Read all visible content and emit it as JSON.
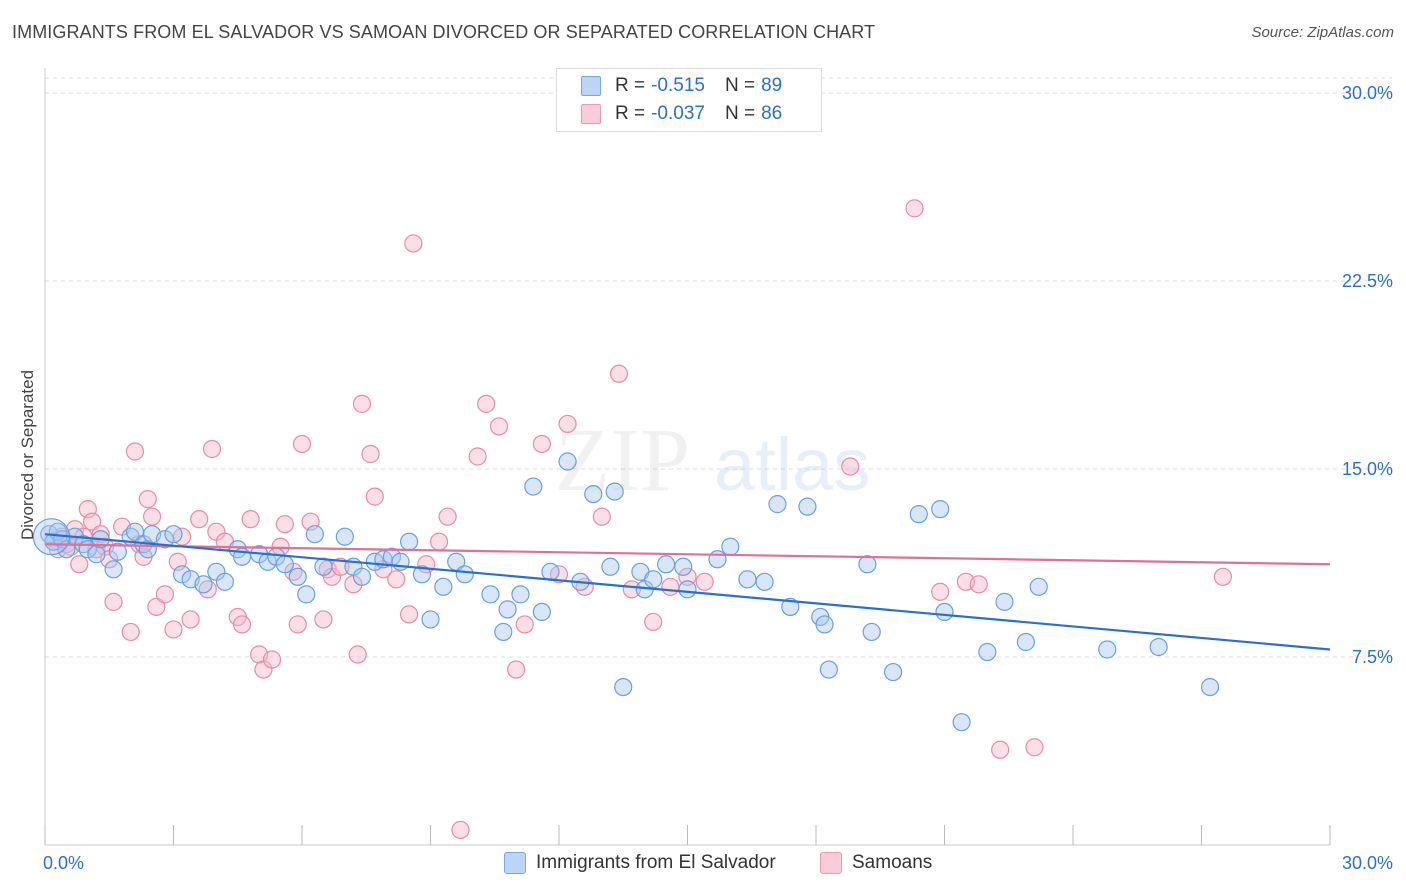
{
  "title": "IMMIGRANTS FROM EL SALVADOR VS SAMOAN DIVORCED OR SEPARATED CORRELATION CHART",
  "source": "Source: ZipAtlas.com",
  "watermark": {
    "zip": "ZIP",
    "atlas": "atlas"
  },
  "legend": {
    "rows": [
      {
        "r_label": "R = ",
        "r_value": "-0.515",
        "n_label": "N = ",
        "n_value": "89",
        "color": "#a9c8ef"
      },
      {
        "r_label": "R = ",
        "r_value": "-0.037",
        "n_label": "N = ",
        "n_value": "86",
        "color": "#f6b8ca"
      }
    ]
  },
  "bottom_legend": {
    "series1": "Immigrants from El Salvador",
    "series2": "Samoans"
  },
  "colors": {
    "series1_fill": "#a9c8ef",
    "series1_stroke": "#6a9fe0",
    "series1_line": "#2a6fd0",
    "series2_fill": "#f6b8ca",
    "series2_stroke": "#e88aa8",
    "series2_line": "#e0709a",
    "tick_label": "#2a6fd0",
    "grid": "#dcdcdc"
  },
  "chart_data": {
    "type": "scatter",
    "title": "IMMIGRANTS FROM EL SALVADOR VS SAMOAN DIVORCED OR SEPARATED CORRELATION CHART",
    "xlabel": "",
    "ylabel": "Divorced or Separated",
    "xlim": [
      0,
      30
    ],
    "ylim": [
      0,
      31
    ],
    "x_tick_labels": {
      "left": "0.0%",
      "right": "30.0%"
    },
    "y_ticks": [
      {
        "value": 7.5,
        "label": "7.5%"
      },
      {
        "value": 15.0,
        "label": "15.0%"
      },
      {
        "value": 22.5,
        "label": "22.5%"
      },
      {
        "value": 30.0,
        "label": "30.0%"
      }
    ],
    "grid": "horizontal dashed",
    "legend_position": "top-center",
    "series": [
      {
        "name": "Immigrants from El Salvador",
        "R": -0.515,
        "N": 89,
        "trend": {
          "x0": 0,
          "y0": 12.4,
          "x1": 30,
          "y1": 7.8
        },
        "points": [
          [
            0.1,
            12.4
          ],
          [
            0.2,
            12.1
          ],
          [
            0.3,
            12.5
          ],
          [
            0.4,
            12.2
          ],
          [
            0.5,
            11.8
          ],
          [
            0.7,
            12.3
          ],
          [
            0.9,
            12.0
          ],
          [
            1.0,
            11.8
          ],
          [
            1.2,
            11.6
          ],
          [
            1.3,
            12.2
          ],
          [
            1.6,
            11.0
          ],
          [
            1.7,
            11.7
          ],
          [
            2.0,
            12.3
          ],
          [
            2.1,
            12.5
          ],
          [
            2.3,
            12.0
          ],
          [
            2.4,
            11.8
          ],
          [
            2.5,
            12.4
          ],
          [
            2.8,
            12.2
          ],
          [
            3.0,
            12.4
          ],
          [
            3.2,
            10.8
          ],
          [
            3.4,
            10.6
          ],
          [
            3.7,
            10.4
          ],
          [
            4.0,
            10.9
          ],
          [
            4.2,
            10.5
          ],
          [
            4.5,
            11.8
          ],
          [
            4.6,
            11.5
          ],
          [
            5.0,
            11.6
          ],
          [
            5.2,
            11.3
          ],
          [
            5.4,
            11.5
          ],
          [
            5.6,
            11.2
          ],
          [
            5.9,
            10.7
          ],
          [
            6.1,
            10.0
          ],
          [
            6.3,
            12.4
          ],
          [
            6.5,
            11.1
          ],
          [
            7.0,
            12.3
          ],
          [
            7.2,
            11.1
          ],
          [
            7.4,
            10.7
          ],
          [
            7.7,
            11.3
          ],
          [
            7.9,
            11.4
          ],
          [
            8.1,
            11.5
          ],
          [
            8.3,
            11.3
          ],
          [
            8.5,
            12.1
          ],
          [
            8.8,
            10.8
          ],
          [
            9.0,
            9.0
          ],
          [
            9.3,
            10.3
          ],
          [
            9.6,
            11.3
          ],
          [
            9.8,
            10.8
          ],
          [
            10.4,
            10.0
          ],
          [
            10.7,
            8.5
          ],
          [
            10.8,
            9.4
          ],
          [
            11.1,
            10.0
          ],
          [
            11.4,
            14.3
          ],
          [
            11.6,
            9.3
          ],
          [
            11.8,
            10.9
          ],
          [
            12.2,
            15.3
          ],
          [
            12.5,
            10.5
          ],
          [
            12.8,
            14.0
          ],
          [
            13.2,
            11.1
          ],
          [
            13.3,
            14.1
          ],
          [
            13.5,
            6.3
          ],
          [
            13.9,
            10.9
          ],
          [
            14.0,
            10.2
          ],
          [
            14.2,
            10.6
          ],
          [
            14.5,
            11.2
          ],
          [
            14.9,
            11.1
          ],
          [
            15.0,
            10.2
          ],
          [
            15.7,
            11.4
          ],
          [
            16.0,
            11.9
          ],
          [
            16.4,
            10.6
          ],
          [
            16.8,
            10.5
          ],
          [
            17.1,
            13.6
          ],
          [
            17.4,
            9.5
          ],
          [
            17.8,
            13.5
          ],
          [
            18.1,
            9.1
          ],
          [
            18.2,
            8.8
          ],
          [
            18.3,
            7.0
          ],
          [
            19.2,
            11.2
          ],
          [
            19.3,
            8.5
          ],
          [
            19.8,
            6.9
          ],
          [
            20.4,
            13.2
          ],
          [
            20.9,
            13.4
          ],
          [
            21.0,
            9.3
          ],
          [
            21.4,
            4.9
          ],
          [
            22.0,
            7.7
          ],
          [
            22.4,
            9.7
          ],
          [
            22.9,
            8.1
          ],
          [
            23.2,
            10.3
          ],
          [
            26.0,
            7.9
          ],
          [
            27.2,
            6.3
          ],
          [
            24.8,
            7.8
          ]
        ]
      },
      {
        "name": "Samoans",
        "R": -0.037,
        "N": 86,
        "trend": {
          "x0": 0,
          "y0": 12.0,
          "x1": 30,
          "y1": 11.2
        },
        "points": [
          [
            0.2,
            12.1
          ],
          [
            0.3,
            11.8
          ],
          [
            0.4,
            12.3
          ],
          [
            0.5,
            12.0
          ],
          [
            0.6,
            11.9
          ],
          [
            0.7,
            12.6
          ],
          [
            0.8,
            11.2
          ],
          [
            0.9,
            12.3
          ],
          [
            1.0,
            13.4
          ],
          [
            1.1,
            12.9
          ],
          [
            1.2,
            11.8
          ],
          [
            1.3,
            12.4
          ],
          [
            1.4,
            11.9
          ],
          [
            1.5,
            11.4
          ],
          [
            1.6,
            9.7
          ],
          [
            1.8,
            12.7
          ],
          [
            2.0,
            8.5
          ],
          [
            2.1,
            15.7
          ],
          [
            2.2,
            12.0
          ],
          [
            2.3,
            11.5
          ],
          [
            2.4,
            13.8
          ],
          [
            2.5,
            13.1
          ],
          [
            2.6,
            9.5
          ],
          [
            2.8,
            10.0
          ],
          [
            3.0,
            8.6
          ],
          [
            3.1,
            11.3
          ],
          [
            3.2,
            12.3
          ],
          [
            3.4,
            9.0
          ],
          [
            3.6,
            13.0
          ],
          [
            3.8,
            10.2
          ],
          [
            3.9,
            15.8
          ],
          [
            4.0,
            12.5
          ],
          [
            4.2,
            12.1
          ],
          [
            4.5,
            9.1
          ],
          [
            4.6,
            8.8
          ],
          [
            4.8,
            13.0
          ],
          [
            5.0,
            7.6
          ],
          [
            5.1,
            7.0
          ],
          [
            5.3,
            7.4
          ],
          [
            5.5,
            11.9
          ],
          [
            5.6,
            12.8
          ],
          [
            5.8,
            10.9
          ],
          [
            5.9,
            8.8
          ],
          [
            6.0,
            16.0
          ],
          [
            6.2,
            12.9
          ],
          [
            6.5,
            9.0
          ],
          [
            6.6,
            11.0
          ],
          [
            6.7,
            10.7
          ],
          [
            6.9,
            11.1
          ],
          [
            7.2,
            10.4
          ],
          [
            7.3,
            7.6
          ],
          [
            7.4,
            17.6
          ],
          [
            7.6,
            15.6
          ],
          [
            7.7,
            13.9
          ],
          [
            7.9,
            11.0
          ],
          [
            8.2,
            10.6
          ],
          [
            8.6,
            24.0
          ],
          [
            8.5,
            9.2
          ],
          [
            8.9,
            11.2
          ],
          [
            9.2,
            12.1
          ],
          [
            9.4,
            13.1
          ],
          [
            9.7,
            0.6
          ],
          [
            10.1,
            15.5
          ],
          [
            10.3,
            17.6
          ],
          [
            10.6,
            16.7
          ],
          [
            11.0,
            7.0
          ],
          [
            11.2,
            8.8
          ],
          [
            11.6,
            16.0
          ],
          [
            12.0,
            10.8
          ],
          [
            12.2,
            16.8
          ],
          [
            12.6,
            10.3
          ],
          [
            13.0,
            13.1
          ],
          [
            13.4,
            18.8
          ],
          [
            13.7,
            10.2
          ],
          [
            14.2,
            8.9
          ],
          [
            14.6,
            10.3
          ],
          [
            15.0,
            10.7
          ],
          [
            15.4,
            10.5
          ],
          [
            18.8,
            15.1
          ],
          [
            20.3,
            25.4
          ],
          [
            20.9,
            10.1
          ],
          [
            21.5,
            10.5
          ],
          [
            21.8,
            10.4
          ],
          [
            22.3,
            3.8
          ],
          [
            23.1,
            3.9
          ],
          [
            27.5,
            10.7
          ]
        ]
      }
    ]
  }
}
